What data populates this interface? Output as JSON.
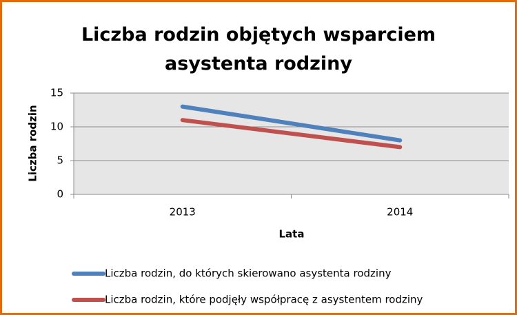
{
  "chart_data": {
    "type": "line",
    "title": "Liczba rodzin objętych wsparciem asystenta rodziny",
    "x_label": "Lata",
    "y_label": "Liczba rodzin",
    "categories": [
      "2013",
      "2014"
    ],
    "series": [
      {
        "name": "Liczba rodzin, do których skierowano asystenta rodziny",
        "color": "#4f81bd",
        "values": [
          13,
          8
        ]
      },
      {
        "name": "Liczba rodzin, które podjęły współpracę z asystentem rodziny",
        "color": "#c0504d",
        "values": [
          11,
          7
        ]
      }
    ],
    "ylim": [
      0,
      15
    ],
    "yticks": [
      0,
      5,
      10,
      15
    ],
    "grid": true,
    "legend": "bottom"
  }
}
